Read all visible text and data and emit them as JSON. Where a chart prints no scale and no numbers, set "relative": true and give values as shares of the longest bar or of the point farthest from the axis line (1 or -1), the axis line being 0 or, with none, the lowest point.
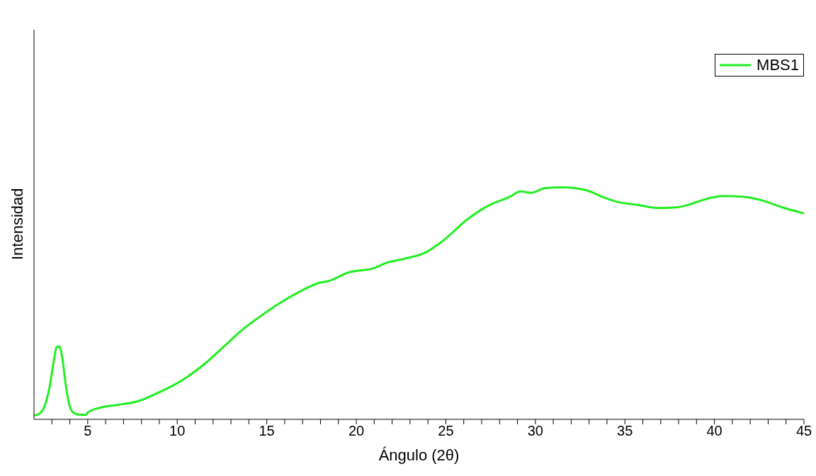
{
  "chart_data": {
    "type": "line",
    "xlabel": "Ángulo (2θ)",
    "ylabel": "Intensidad",
    "relative": true,
    "legend": "top right",
    "grid": false,
    "marker": "none",
    "line_style": "solid",
    "xlim": [
      2,
      45
    ],
    "xticks": [
      {
        "value": 3,
        "label": null
      },
      {
        "value": 4,
        "label": null
      },
      5,
      {
        "value": 6,
        "label": null
      },
      {
        "value": 7,
        "label": null
      },
      {
        "value": 8,
        "label": null
      },
      {
        "value": 9,
        "label": null
      },
      10,
      {
        "value": 11,
        "label": null
      },
      {
        "value": 12,
        "label": null
      },
      {
        "value": 13,
        "label": null
      },
      {
        "value": 14,
        "label": null
      },
      15,
      {
        "value": 16,
        "label": null
      },
      {
        "value": 17,
        "label": null
      },
      {
        "value": 18,
        "label": null
      },
      {
        "value": 19,
        "label": null
      },
      20,
      {
        "value": 21,
        "label": null
      },
      {
        "value": 22,
        "label": null
      },
      {
        "value": 23,
        "label": null
      },
      {
        "value": 24,
        "label": null
      },
      25,
      {
        "value": 26,
        "label": null
      },
      {
        "value": 27,
        "label": null
      },
      {
        "value": 28,
        "label": null
      },
      {
        "value": 29,
        "label": null
      },
      30,
      {
        "value": 31,
        "label": null
      },
      {
        "value": 32,
        "label": null
      },
      {
        "value": 33,
        "label": null
      },
      {
        "value": 34,
        "label": null
      },
      35,
      {
        "value": 36,
        "label": null
      },
      {
        "value": 37,
        "label": null
      },
      {
        "value": 38,
        "label": null
      },
      {
        "value": 39,
        "label": null
      },
      40,
      {
        "value": 41,
        "label": null
      },
      {
        "value": 42,
        "label": null
      },
      {
        "value": 43,
        "label": null
      },
      {
        "value": 44,
        "label": null
      },
      45
    ],
    "x": [
      2.0,
      2.27,
      2.55,
      2.86,
      3.1,
      3.26,
      3.42,
      3.58,
      3.77,
      3.97,
      4.2,
      4.53,
      4.92,
      5.0,
      5.63,
      6.23,
      7.0,
      7.8,
      8.8,
      9.79,
      10.58,
      11.57,
      12.56,
      13.54,
      14.53,
      15.72,
      16.7,
      17.9,
      18.49,
      19.48,
      21.06,
      21.65,
      22.64,
      23.83,
      24.82,
      26.2,
      27.39,
      28.58,
      29.17,
      29.76,
      30.55,
      31.54,
      32.93,
      33.72,
      34.51,
      35.7,
      36.88,
      37.87,
      38.66,
      39.45,
      40.44,
      41.63,
      42.62,
      43.8,
      45.0
    ],
    "series": [
      {
        "name": "MBS1",
        "color": "#22ee22",
        "values": [
          0.017,
          0.023,
          0.049,
          0.135,
          0.25,
          0.311,
          0.314,
          0.265,
          0.15,
          0.063,
          0.029,
          0.02,
          0.02,
          0.029,
          0.049,
          0.058,
          0.066,
          0.078,
          0.11,
          0.147,
          0.184,
          0.242,
          0.311,
          0.38,
          0.438,
          0.501,
          0.545,
          0.588,
          0.597,
          0.631,
          0.654,
          0.674,
          0.692,
          0.718,
          0.769,
          0.862,
          0.922,
          0.96,
          0.983,
          0.977,
          0.997,
          1.0,
          0.986,
          0.96,
          0.939,
          0.925,
          0.911,
          0.914,
          0.928,
          0.948,
          0.963,
          0.96,
          0.945,
          0.914,
          0.888
        ]
      }
    ]
  }
}
